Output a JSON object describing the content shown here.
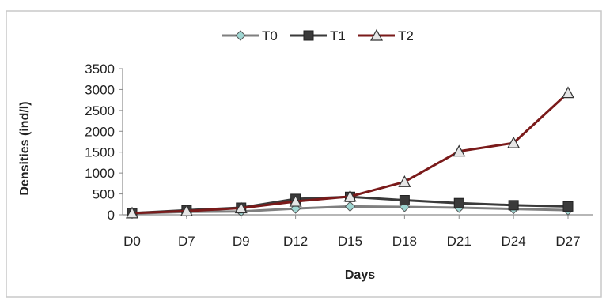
{
  "chart_data": {
    "type": "line",
    "title": "",
    "xlabel": "Days",
    "ylabel": "Densities (ind/l)",
    "categories": [
      "D0",
      "D7",
      "D9",
      "D12",
      "D15",
      "D18",
      "D21",
      "D24",
      "D27"
    ],
    "ylim": [
      0,
      3500
    ],
    "yticks": [
      0,
      500,
      1000,
      1500,
      2000,
      2500,
      3000,
      3500
    ],
    "grid": false,
    "legend_position": "top",
    "series": [
      {
        "name": "T0",
        "marker": "diamond",
        "color": "#7f7f7f",
        "values": [
          30,
          70,
          80,
          150,
          200,
          190,
          170,
          140,
          110
        ]
      },
      {
        "name": "T1",
        "marker": "square",
        "color": "#3a3a3a",
        "values": [
          40,
          110,
          170,
          380,
          430,
          350,
          280,
          230,
          200
        ]
      },
      {
        "name": "T2",
        "marker": "triangle",
        "color": "#7a1a1a",
        "values": [
          40,
          90,
          160,
          320,
          440,
          790,
          1520,
          1720,
          2920
        ]
      }
    ]
  }
}
